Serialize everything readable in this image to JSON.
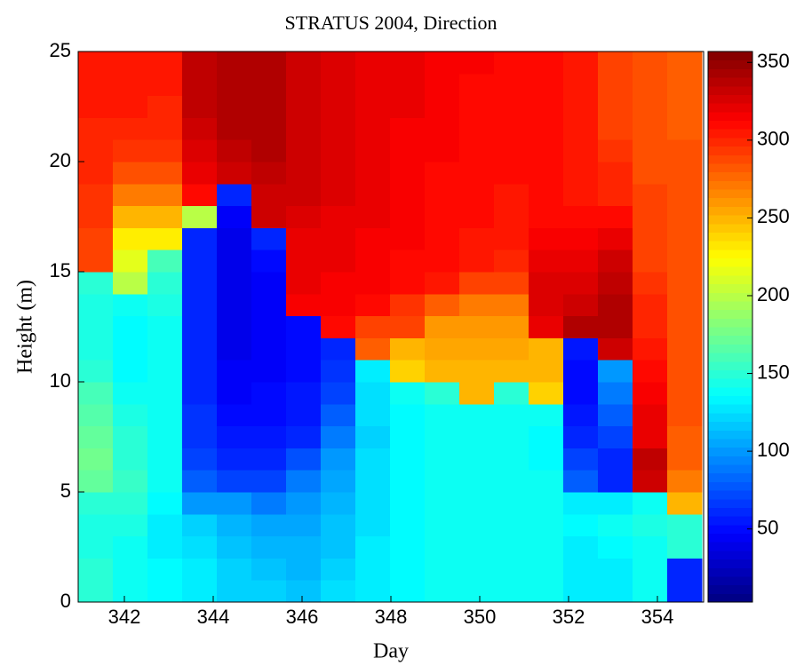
{
  "chart_data": {
    "type": "heatmap",
    "title": "STRATUS 2004, Direction",
    "x_label": "Day",
    "y_label": "Height (m)",
    "xlim": [
      340.96,
      355.04
    ],
    "ylim": [
      0,
      25
    ],
    "xticks": [
      342,
      344,
      346,
      348,
      350,
      352,
      354
    ],
    "yticks": [
      0,
      5,
      10,
      15,
      20,
      25
    ],
    "colormap": "jet",
    "clim": [
      3,
      357
    ],
    "colorbar_ticks": [
      50,
      100,
      150,
      200,
      250,
      300,
      350
    ],
    "x": [
      341.35,
      342.13,
      342.91,
      343.69,
      344.47,
      345.25,
      346.03,
      346.81,
      347.59,
      348.37,
      349.15,
      349.93,
      350.71,
      351.49,
      352.27,
      353.05,
      353.83,
      354.61
    ],
    "y": [
      0.5,
      1.5,
      2.5,
      3.5,
      4.5,
      5.5,
      6.5,
      7.5,
      8.5,
      9.5,
      10.5,
      11.5,
      12.5,
      13.5,
      14.5,
      15.5,
      16.5,
      17.5,
      18.5,
      19.5,
      20.5,
      21.5,
      22.5,
      23.5,
      24.5
    ],
    "values": [
      [
        150,
        140,
        135,
        130,
        120,
        120,
        115,
        125,
        130,
        135,
        140,
        140,
        140,
        140,
        130,
        130,
        140,
        60
      ],
      [
        150,
        140,
        135,
        130,
        120,
        115,
        110,
        120,
        130,
        135,
        140,
        140,
        140,
        140,
        130,
        130,
        140,
        60
      ],
      [
        145,
        140,
        130,
        125,
        115,
        110,
        110,
        115,
        130,
        135,
        140,
        140,
        140,
        140,
        130,
        135,
        140,
        150
      ],
      [
        145,
        145,
        130,
        120,
        110,
        105,
        105,
        115,
        125,
        135,
        140,
        140,
        140,
        140,
        135,
        140,
        145,
        150
      ],
      [
        150,
        150,
        135,
        100,
        100,
        90,
        100,
        110,
        125,
        135,
        140,
        140,
        140,
        140,
        130,
        130,
        140,
        250
      ],
      [
        170,
        155,
        140,
        80,
        70,
        70,
        90,
        105,
        125,
        135,
        140,
        140,
        140,
        140,
        80,
        60,
        330,
        270
      ],
      [
        175,
        150,
        140,
        70,
        60,
        60,
        75,
        100,
        125,
        135,
        140,
        140,
        140,
        135,
        70,
        60,
        335,
        280
      ],
      [
        170,
        150,
        140,
        65,
        55,
        55,
        60,
        90,
        120,
        135,
        140,
        140,
        140,
        135,
        60,
        70,
        320,
        280
      ],
      [
        165,
        145,
        140,
        65,
        50,
        50,
        55,
        80,
        125,
        135,
        140,
        140,
        140,
        140,
        55,
        80,
        320,
        285
      ],
      [
        160,
        140,
        140,
        60,
        45,
        50,
        55,
        70,
        125,
        140,
        150,
        250,
        150,
        240,
        50,
        90,
        315,
        285
      ],
      [
        150,
        135,
        140,
        60,
        45,
        45,
        50,
        65,
        130,
        240,
        250,
        250,
        250,
        250,
        50,
        100,
        310,
        285
      ],
      [
        145,
        135,
        140,
        60,
        40,
        45,
        50,
        60,
        280,
        250,
        255,
        255,
        255,
        250,
        55,
        330,
        305,
        285
      ],
      [
        145,
        135,
        140,
        60,
        40,
        45,
        50,
        310,
        290,
        290,
        260,
        260,
        260,
        320,
        340,
        340,
        300,
        285
      ],
      [
        145,
        140,
        145,
        60,
        40,
        45,
        315,
        315,
        310,
        295,
        280,
        270,
        270,
        325,
        330,
        340,
        300,
        285
      ],
      [
        150,
        200,
        150,
        60,
        40,
        45,
        320,
        315,
        315,
        310,
        305,
        290,
        290,
        325,
        325,
        335,
        295,
        285
      ],
      [
        290,
        215,
        160,
        60,
        40,
        50,
        320,
        320,
        315,
        310,
        310,
        305,
        300,
        320,
        320,
        330,
        290,
        285
      ],
      [
        290,
        230,
        230,
        60,
        40,
        60,
        320,
        320,
        315,
        315,
        310,
        305,
        305,
        315,
        315,
        320,
        290,
        285
      ],
      [
        295,
        250,
        250,
        200,
        45,
        330,
        325,
        320,
        320,
        315,
        310,
        310,
        305,
        310,
        310,
        310,
        290,
        285
      ],
      [
        295,
        270,
        270,
        310,
        60,
        330,
        330,
        325,
        320,
        315,
        310,
        310,
        305,
        310,
        305,
        300,
        290,
        285
      ],
      [
        300,
        285,
        285,
        320,
        330,
        335,
        330,
        325,
        320,
        315,
        310,
        310,
        310,
        310,
        305,
        300,
        285,
        285
      ],
      [
        300,
        295,
        295,
        325,
        335,
        340,
        330,
        325,
        320,
        315,
        315,
        310,
        310,
        310,
        305,
        295,
        285,
        285
      ],
      [
        300,
        300,
        300,
        330,
        340,
        340,
        330,
        325,
        320,
        315,
        315,
        310,
        310,
        310,
        305,
        290,
        285,
        280
      ],
      [
        305,
        305,
        300,
        335,
        340,
        340,
        330,
        325,
        320,
        320,
        315,
        310,
        310,
        310,
        305,
        290,
        285,
        280
      ],
      [
        305,
        305,
        305,
        335,
        340,
        340,
        330,
        325,
        320,
        320,
        315,
        310,
        310,
        310,
        305,
        290,
        285,
        280
      ],
      [
        305,
        305,
        305,
        335,
        340,
        340,
        330,
        325,
        320,
        320,
        315,
        315,
        310,
        310,
        305,
        290,
        285,
        280
      ]
    ]
  }
}
